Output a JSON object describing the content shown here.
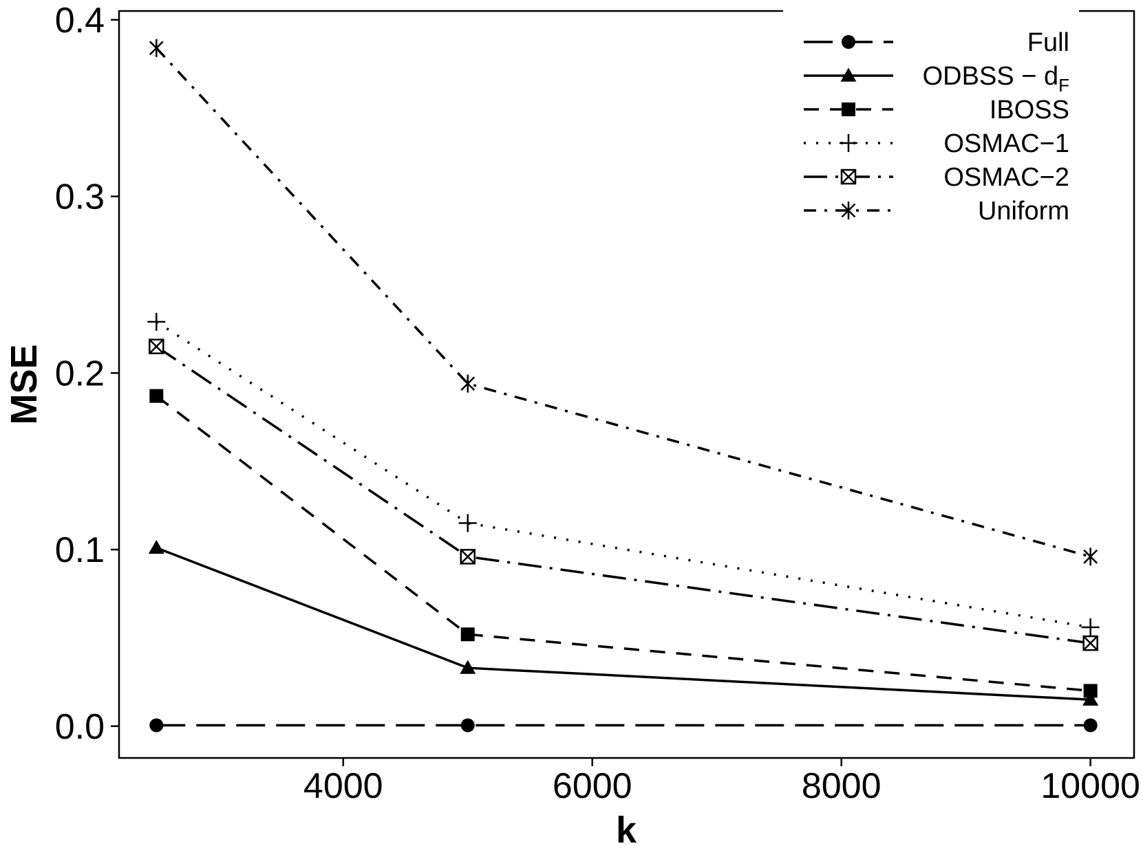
{
  "chart_data": {
    "type": "line",
    "title": "",
    "xlabel": "k",
    "ylabel": "MSE",
    "x": [
      2500,
      5000,
      10000
    ],
    "xlim": [
      2200,
      10350
    ],
    "ylim": [
      -0.018,
      0.405
    ],
    "xticks": [
      4000,
      6000,
      8000,
      10000
    ],
    "xtick_labels": [
      "4000",
      "6000",
      "8000",
      "10000"
    ],
    "yticks": [
      0.0,
      0.1,
      0.2,
      0.3,
      0.4
    ],
    "ytick_labels": [
      "0.0",
      "0.1",
      "0.2",
      "0.3",
      "0.4"
    ],
    "grid": false,
    "legend_position": "top-right",
    "series": [
      {
        "name": "Full",
        "label_main": "Full",
        "label_sub": "",
        "values": [
          0.0005,
          0.0005,
          0.0005
        ],
        "marker": "circle",
        "dash": "longdash"
      },
      {
        "name": "ODBSS-dF",
        "label_main": "ODBSS − d",
        "label_sub": "F",
        "values": [
          0.101,
          0.033,
          0.015
        ],
        "marker": "triangle",
        "dash": "solid"
      },
      {
        "name": "IBOSS",
        "label_main": "IBOSS",
        "label_sub": "",
        "values": [
          0.187,
          0.052,
          0.02
        ],
        "marker": "square",
        "dash": "dashed"
      },
      {
        "name": "OSMAC−1",
        "label_main": "OSMAC−1",
        "label_sub": "",
        "values": [
          0.229,
          0.115,
          0.056
        ],
        "marker": "plus",
        "dash": "dotted"
      },
      {
        "name": "OSMAC−2",
        "label_main": "OSMAC−2",
        "label_sub": "",
        "values": [
          0.215,
          0.096,
          0.047
        ],
        "marker": "boxx",
        "dash": "longdashdot"
      },
      {
        "name": "Uniform",
        "label_main": "Uniform",
        "label_sub": "",
        "values": [
          0.384,
          0.194,
          0.096
        ],
        "marker": "asterisk",
        "dash": "dotdash"
      }
    ]
  }
}
